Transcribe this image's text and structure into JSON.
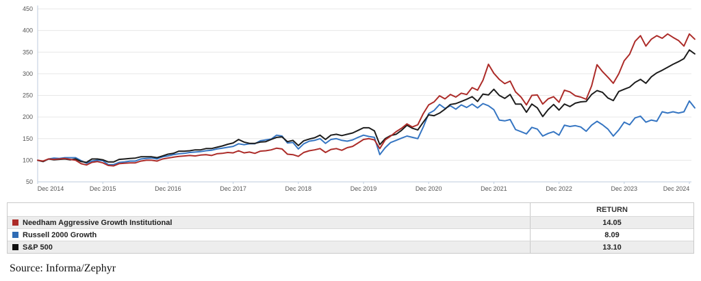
{
  "chart_data": {
    "type": "line",
    "title": "",
    "xlabel": "",
    "ylabel": "",
    "ylim": [
      50,
      450
    ],
    "y_ticks": [
      450,
      400,
      350,
      300,
      250,
      200,
      150,
      100,
      50
    ],
    "grid": "horizontal",
    "x_tick_labels": [
      "Dec 2014",
      "Dec 2015",
      "Dec 2016",
      "Dec 2017",
      "Dec 2018",
      "Dec 2019",
      "Dec 2020",
      "Dec 2021",
      "Dec 2022",
      "Dec 2023",
      "Dec 2024"
    ],
    "x_unit": "month",
    "x_start": "Dec 2014",
    "x_end": "Jan 2025",
    "base_value": 100,
    "legend_position": "table-below",
    "series": [
      {
        "name": "Needham Aggressive Growth Institutional",
        "color": "#ac2b28",
        "values": [
          100,
          98,
          103,
          102,
          103,
          104,
          102,
          100,
          92,
          89,
          95,
          97,
          94,
          88,
          87,
          92,
          93,
          94,
          94,
          98,
          100,
          100,
          98,
          103,
          105,
          107,
          109,
          110,
          111,
          110,
          112,
          113,
          111,
          115,
          116,
          118,
          117,
          122,
          117,
          119,
          116,
          121,
          122,
          124,
          128,
          126,
          114,
          113,
          109,
          118,
          122,
          124,
          127,
          118,
          125,
          127,
          123,
          129,
          132,
          140,
          148,
          150,
          147,
          127,
          147,
          156,
          166,
          174,
          184,
          177,
          182,
          208,
          228,
          235,
          249,
          242,
          252,
          246,
          255,
          252,
          268,
          262,
          285,
          322,
          301,
          287,
          277,
          283,
          258,
          246,
          228,
          250,
          251,
          230,
          242,
          247,
          234,
          262,
          258,
          249,
          246,
          241,
          272,
          321,
          305,
          292,
          278,
          300,
          330,
          345,
          375,
          388,
          364,
          380,
          388,
          382,
          392,
          384,
          377,
          364,
          392,
          380
        ]
      },
      {
        "name": "Russell 2000 Growth",
        "color": "#3575c2",
        "values": [
          100,
          97,
          103,
          105,
          104,
          106,
          106,
          106,
          99,
          93,
          98,
          100,
          99,
          90,
          90,
          95,
          96,
          98,
          98,
          103,
          104,
          105,
          103,
          108,
          110,
          113,
          115,
          116,
          118,
          119,
          120,
          122,
          123,
          126,
          128,
          130,
          132,
          138,
          136,
          138,
          138,
          145,
          147,
          149,
          158,
          156,
          140,
          141,
          126,
          138,
          144,
          146,
          150,
          139,
          148,
          150,
          146,
          144,
          147,
          153,
          158,
          155,
          153,
          113,
          129,
          141,
          146,
          151,
          156,
          153,
          150,
          177,
          208,
          215,
          229,
          220,
          226,
          218,
          228,
          222,
          230,
          221,
          231,
          226,
          217,
          193,
          191,
          194,
          171,
          166,
          161,
          176,
          172,
          156,
          162,
          166,
          158,
          181,
          178,
          180,
          177,
          167,
          181,
          190,
          182,
          172,
          156,
          170,
          188,
          182,
          198,
          202,
          188,
          193,
          190,
          212,
          209,
          212,
          209,
          212,
          237,
          221
        ]
      },
      {
        "name": "S&P 500",
        "color": "#1c1c1c",
        "values": [
          100,
          97,
          103,
          101,
          102,
          103,
          101,
          103,
          97,
          95,
          103,
          103,
          101,
          96,
          96,
          102,
          103,
          104,
          105,
          108,
          108,
          108,
          106,
          110,
          114,
          116,
          121,
          121,
          122,
          124,
          124,
          127,
          127,
          130,
          133,
          137,
          140,
          148,
          142,
          139,
          139,
          142,
          143,
          148,
          153,
          154,
          143,
          146,
          134,
          145,
          149,
          152,
          158,
          148,
          158,
          160,
          157,
          160,
          163,
          169,
          175,
          175,
          168,
          136,
          150,
          157,
          160,
          169,
          181,
          174,
          170,
          188,
          205,
          203,
          209,
          218,
          229,
          231,
          236,
          241,
          247,
          236,
          253,
          251,
          264,
          250,
          243,
          252,
          230,
          230,
          211,
          230,
          221,
          201,
          217,
          229,
          216,
          230,
          224,
          232,
          235,
          236,
          252,
          261,
          257,
          244,
          238,
          259,
          264,
          269,
          280,
          287,
          278,
          293,
          302,
          308,
          315,
          322,
          328,
          335,
          355,
          346
        ]
      }
    ]
  },
  "table": {
    "columns": [
      "",
      "RETURN"
    ],
    "rows": [
      {
        "label": "Needham Aggressive Growth Institutional",
        "swatch": "#ac2b28",
        "return": "14.05"
      },
      {
        "label": "Russell 2000 Growth",
        "swatch": "#2f6cb5",
        "return": "8.09"
      },
      {
        "label": "S&P 500",
        "swatch": "#111111",
        "return": "13.10"
      }
    ]
  },
  "source": {
    "label": "Source: Informa/Zephyr"
  }
}
